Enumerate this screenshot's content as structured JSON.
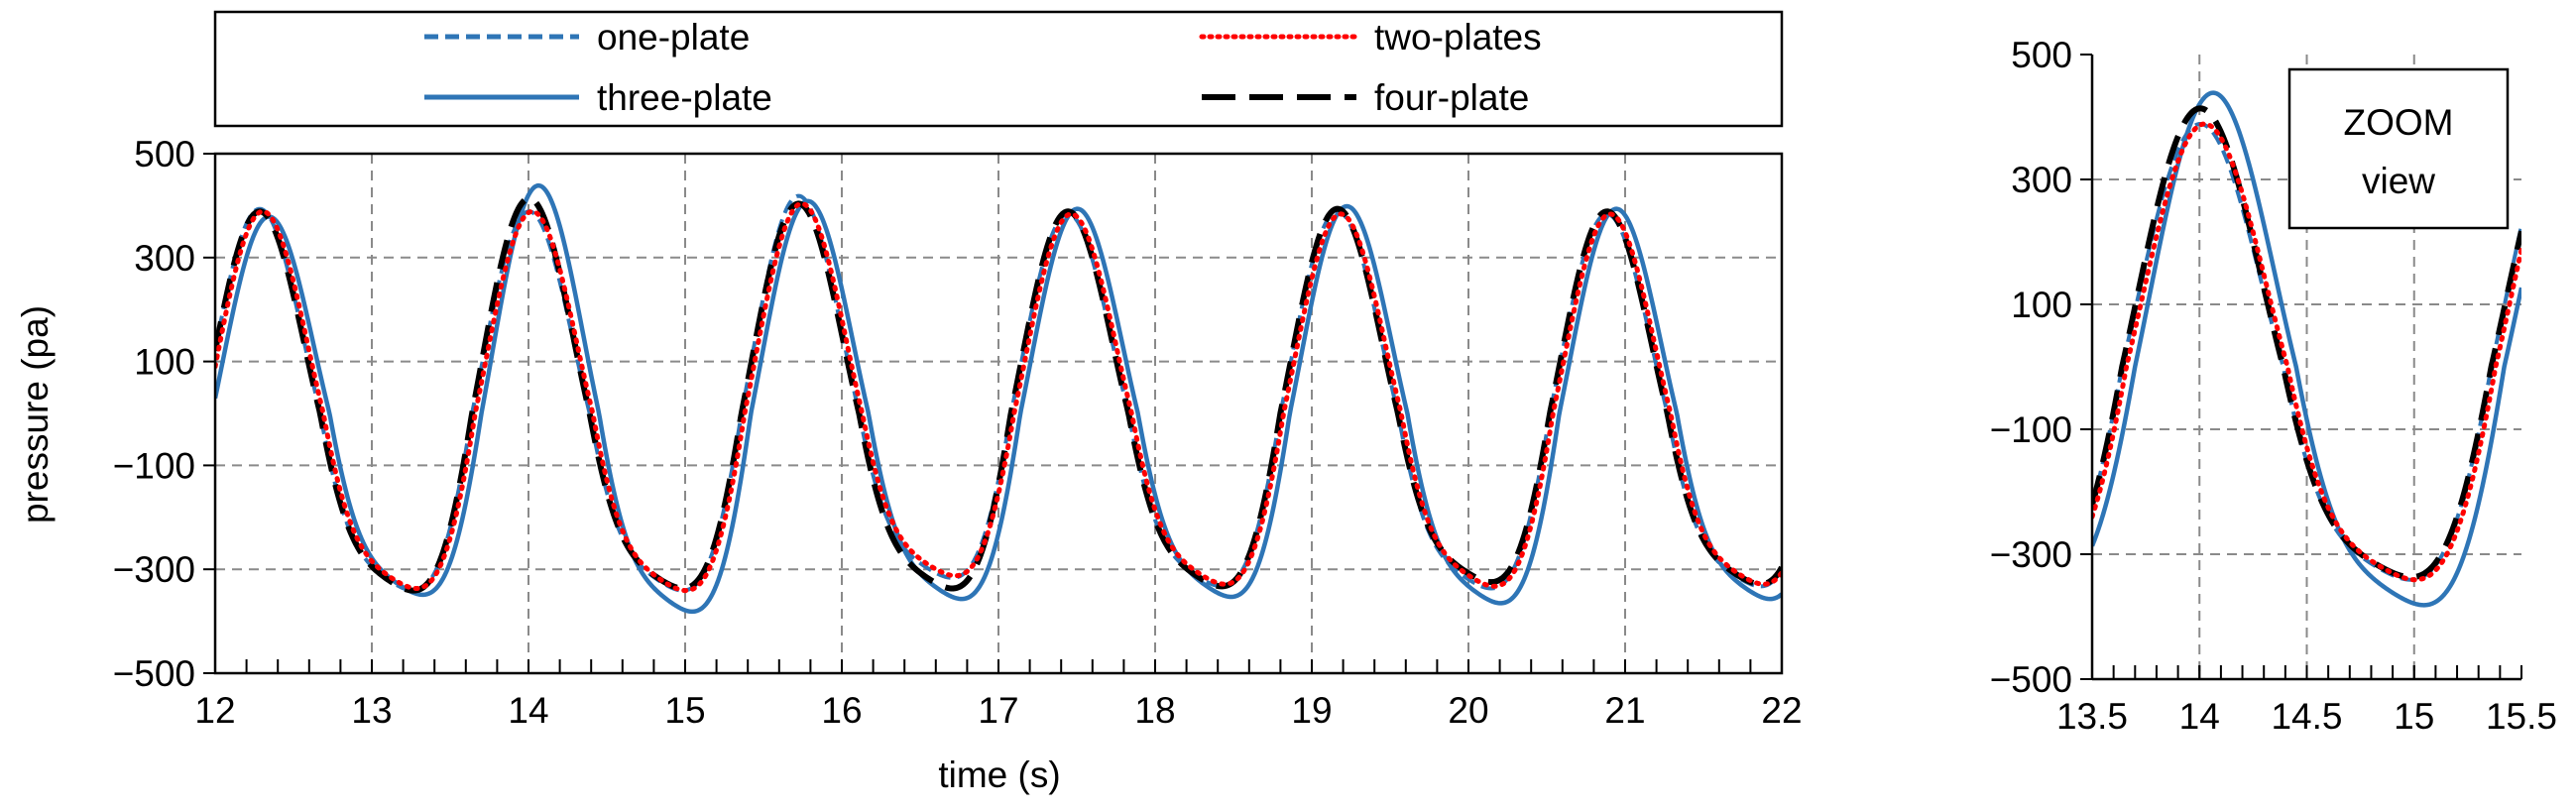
{
  "chart_data": [
    {
      "type": "line",
      "panel": "main",
      "xlabel": "time (s)",
      "ylabel": "pressure (pa)",
      "xlim": [
        12,
        22
      ],
      "ylim": [
        -500,
        500
      ],
      "xticks": [
        12,
        13,
        14,
        15,
        16,
        17,
        18,
        19,
        20,
        21,
        22
      ],
      "yticks": [
        -500,
        -300,
        -100,
        100,
        300,
        500
      ],
      "ytick_labels": [
        "−500",
        "−300",
        "−100",
        "100",
        "300",
        "500"
      ],
      "grid": true,
      "legend_position": "top",
      "period": 1.72,
      "phase_time": 12.3,
      "series": [
        {
          "name": "one-plate",
          "color": "#2E75B6",
          "style": "short-dash",
          "amplitudes": [
            395,
            390,
            420,
            385,
            390,
            385,
            385
          ],
          "troughs": [
            -420,
            -420,
            -390,
            -410,
            -415,
            -410
          ],
          "time_shift": 0.0
        },
        {
          "name": "two-plates",
          "color": "#FF0000",
          "style": "dotted",
          "amplitudes": [
            390,
            390,
            405,
            385,
            385,
            385,
            385
          ],
          "troughs": [
            -415,
            -420,
            -385,
            -405,
            -410,
            -405
          ],
          "time_shift": 0.02
        },
        {
          "name": "three-plate",
          "color": "#2E75B6",
          "style": "solid",
          "amplitudes": [
            380,
            440,
            410,
            395,
            400,
            395,
            390
          ],
          "troughs": [
            -430,
            -470,
            -440,
            -435,
            -450,
            -440
          ],
          "time_shift": 0.06
        },
        {
          "name": "four-plate",
          "color": "#000000",
          "style": "long-dash",
          "amplitudes": [
            390,
            415,
            405,
            390,
            395,
            390,
            390
          ],
          "troughs": [
            -420,
            -415,
            -415,
            -410,
            -400,
            -405
          ],
          "time_shift": 0.0
        }
      ]
    },
    {
      "type": "line",
      "panel": "zoom",
      "annotation": "ZOOM view",
      "xlim": [
        13.5,
        15.5
      ],
      "ylim": [
        -500,
        500
      ],
      "xticks": [
        13.5,
        14,
        14.5,
        15,
        15.5
      ],
      "yticks": [
        -500,
        -300,
        -100,
        100,
        300,
        500
      ],
      "ytick_labels": [
        "−500",
        "−300",
        "−100",
        "100",
        "300",
        "500"
      ],
      "grid": true,
      "series_ref": "same series as main panel"
    }
  ],
  "legend": {
    "items": [
      {
        "label": "one-plate",
        "color": "#2E75B6",
        "style": "short-dash"
      },
      {
        "label": "two-plates",
        "color": "#FF0000",
        "style": "dotted"
      },
      {
        "label": "three-plate",
        "color": "#2E75B6",
        "style": "solid"
      },
      {
        "label": "four-plate",
        "color": "#000000",
        "style": "long-dash"
      }
    ]
  }
}
